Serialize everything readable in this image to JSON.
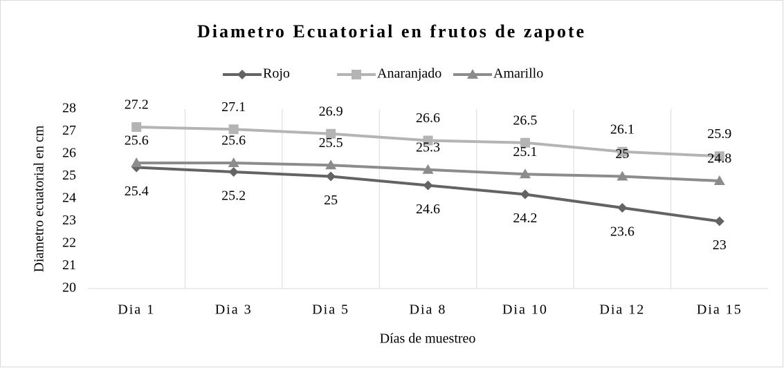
{
  "chart_data": {
    "type": "line",
    "title": "Diametro Ecuatorial en frutos de zapote",
    "x_label": "Días de muestreo",
    "y_label": "Diametro ecuatorial en cm",
    "categories": [
      "Dia 1",
      "Dia 3",
      "Dia 5",
      "Dia 8",
      "Dia 10",
      "Dia 12",
      "Dia 15"
    ],
    "series": [
      {
        "name": "Rojo",
        "color": "#636363",
        "marker": "diamond",
        "values": [
          25.4,
          25.2,
          25,
          24.6,
          24.2,
          23.6,
          23
        ]
      },
      {
        "name": "Anaranjado",
        "color": "#b4b4b4",
        "marker": "square",
        "values": [
          27.2,
          27.1,
          26.9,
          26.6,
          26.5,
          26.1,
          25.9
        ]
      },
      {
        "name": "Amarillo",
        "color": "#8c8c8c",
        "marker": "triangle",
        "values": [
          25.6,
          25.6,
          25.5,
          25.3,
          25.1,
          25,
          24.8
        ]
      }
    ],
    "ylim": [
      20,
      28
    ],
    "yticks": [
      20,
      21,
      22,
      23,
      24,
      25,
      26,
      27,
      28
    ],
    "legend": "top"
  }
}
